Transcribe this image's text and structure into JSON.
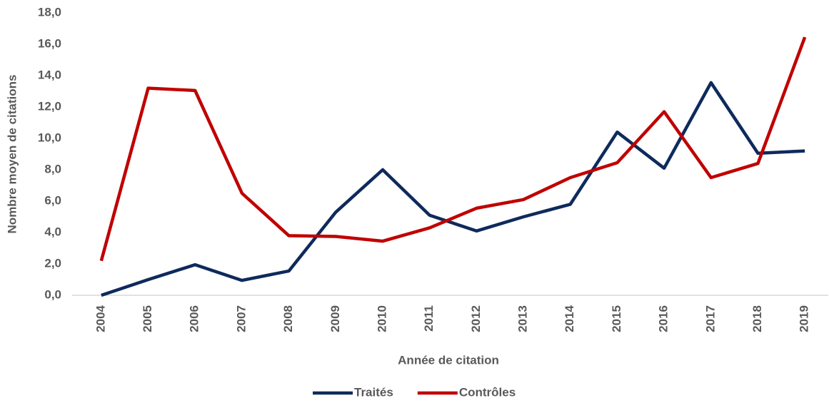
{
  "chart_data": {
    "type": "line",
    "x_label": "Année de citation",
    "y_label": "Nombre moyen de citations",
    "categories": [
      "2004",
      "2005",
      "2006",
      "2007",
      "2008",
      "2009",
      "2010",
      "2011",
      "2012",
      "2013",
      "2014",
      "2015",
      "2016",
      "2017",
      "2018",
      "2019"
    ],
    "series": [
      {
        "name": "Traités",
        "color": "#0e2a5c",
        "values": [
          0,
          1.0,
          1.95,
          0.95,
          1.55,
          5.3,
          8.0,
          5.1,
          4.1,
          5.0,
          5.8,
          10.4,
          8.1,
          13.55,
          9.05,
          9.2
        ]
      },
      {
        "name": "Contrôles",
        "color": "#c00000",
        "values": [
          2.2,
          13.2,
          13.05,
          6.5,
          3.8,
          3.75,
          3.45,
          4.3,
          5.55,
          6.1,
          7.5,
          8.45,
          11.7,
          7.5,
          8.4,
          16.45
        ]
      }
    ],
    "ylim": [
      0,
      18
    ],
    "yticks": [
      {
        "value": 0,
        "label": "0,0"
      },
      {
        "value": 2,
        "label": "2,0"
      },
      {
        "value": 4,
        "label": "4,0"
      },
      {
        "value": 6,
        "label": "6,0"
      },
      {
        "value": 8,
        "label": "8,0"
      },
      {
        "value": 10,
        "label": "10,0"
      },
      {
        "value": 12,
        "label": "12,0"
      },
      {
        "value": 14,
        "label": "14,0"
      },
      {
        "value": 16,
        "label": "16,0"
      },
      {
        "value": 18,
        "label": "18,0"
      }
    ],
    "legend": "bottom"
  }
}
